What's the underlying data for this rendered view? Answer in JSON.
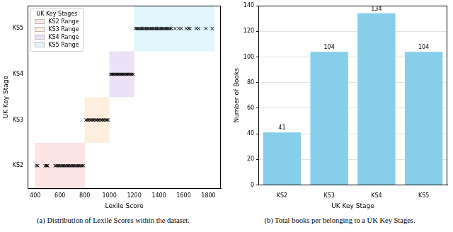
{
  "chart_data": [
    {
      "type": "scatter",
      "caption": "(a) Distribution of Lexile Scores within the dataset.",
      "x_label": "Lexile Score",
      "y_label": "UK Key Stage",
      "categories": [
        "KS2",
        "KS3",
        "KS4",
        "KS5"
      ],
      "points": [
        {
          "category": "KS2",
          "x": [
            410,
            420,
            480,
            490,
            495,
            500,
            560,
            570,
            580,
            590,
            600,
            610,
            620,
            630,
            640,
            650,
            660,
            670,
            680,
            690,
            700,
            710,
            720,
            730,
            740,
            750,
            760,
            770,
            780,
            790
          ]
        },
        {
          "category": "KS3",
          "x": [
            810,
            820,
            830,
            840,
            850,
            860,
            870,
            880,
            890,
            900,
            910,
            920,
            930,
            940,
            950,
            960,
            970,
            980,
            990
          ]
        },
        {
          "category": "KS4",
          "x": [
            1010,
            1020,
            1030,
            1040,
            1050,
            1060,
            1070,
            1080,
            1090,
            1100,
            1110,
            1120,
            1130,
            1140,
            1150,
            1160,
            1170,
            1180,
            1190
          ]
        },
        {
          "category": "KS5",
          "x": [
            1210,
            1220,
            1230,
            1240,
            1250,
            1260,
            1270,
            1280,
            1290,
            1300,
            1310,
            1320,
            1330,
            1340,
            1350,
            1360,
            1370,
            1380,
            1390,
            1400,
            1410,
            1420,
            1430,
            1440,
            1450,
            1460,
            1470,
            1480,
            1490,
            1500,
            1530,
            1560,
            1580,
            1620,
            1640,
            1650,
            1700,
            1720,
            1780,
            1830
          ]
        }
      ],
      "color": "#000000",
      "marker": "x",
      "ranges": [
        {
          "name": "KS2 Range",
          "category": "KS2",
          "start": 400,
          "end": 800,
          "color": "#fde3e3"
        },
        {
          "name": "KS3 Range",
          "category": "KS3",
          "start": 800,
          "end": 1000,
          "color": "#fdeede"
        },
        {
          "name": "KS4 Range",
          "category": "KS4",
          "start": 1000,
          "end": 1200,
          "color": "#ece1f7"
        },
        {
          "name": "KS5 Range",
          "category": "KS5",
          "start": 1200,
          "end": 1850,
          "color": "#e0f6fc"
        }
      ],
      "legend_title": "UK Key Stages",
      "legend": "upper left",
      "xlim": [
        340,
        1900
      ],
      "xticks": [
        400,
        600,
        800,
        1000,
        1200,
        1400,
        1600,
        1800
      ],
      "grid": false
    },
    {
      "type": "bar",
      "caption": "(b) Total books per belonging to a UK Key Stages.",
      "x_label": "UK Key Stage",
      "y_label": "Number of Books",
      "categories": [
        "KS2",
        "KS3",
        "KS4",
        "KS5"
      ],
      "values": [
        41,
        104,
        134,
        104
      ],
      "color": "#87ceeb",
      "ylim": [
        0,
        140
      ],
      "yticks": [
        0,
        20,
        40,
        60,
        80,
        100,
        120,
        140
      ],
      "grid": true,
      "data_labels": true
    }
  ]
}
